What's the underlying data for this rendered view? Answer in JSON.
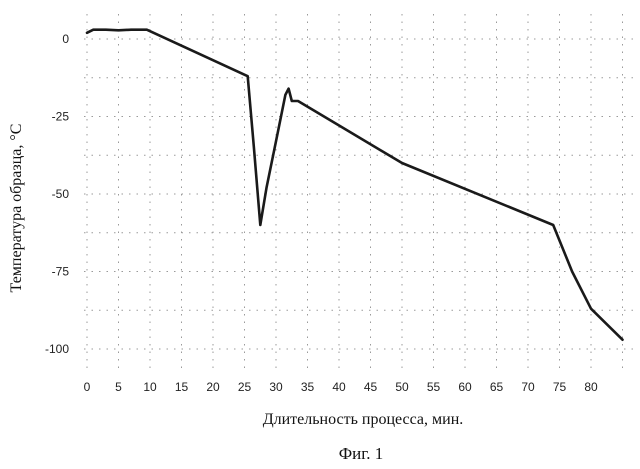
{
  "chart_data": {
    "type": "line",
    "xlabel": "Длительность процесса, мин.",
    "ylabel": "Температура образца, °С",
    "caption": "Фиг. 1",
    "x_ticks": [
      "0",
      "5",
      "10",
      "15",
      "20",
      "25",
      "30",
      "35",
      "40",
      "45",
      "50",
      "55",
      "60",
      "65",
      "70",
      "75",
      "80"
    ],
    "y_ticks": [
      "0",
      "-25",
      "-50",
      "-75",
      "-100"
    ],
    "grid": true,
    "legend": "none",
    "series": [
      {
        "points": [
          [
            0,
            2
          ],
          [
            1,
            3
          ],
          [
            3,
            3
          ],
          [
            5,
            2.8
          ],
          [
            7,
            3
          ],
          [
            9.5,
            3
          ],
          [
            25.5,
            -12
          ],
          [
            26.5,
            -35
          ],
          [
            27.5,
            -60
          ],
          [
            28.5,
            -48
          ],
          [
            30,
            -33
          ],
          [
            31.5,
            -18
          ],
          [
            32,
            -16
          ],
          [
            32.5,
            -20
          ],
          [
            33.5,
            -20
          ],
          [
            50,
            -40
          ],
          [
            74,
            -60
          ],
          [
            77,
            -75
          ],
          [
            80,
            -87
          ],
          [
            85,
            -97
          ]
        ]
      }
    ]
  }
}
